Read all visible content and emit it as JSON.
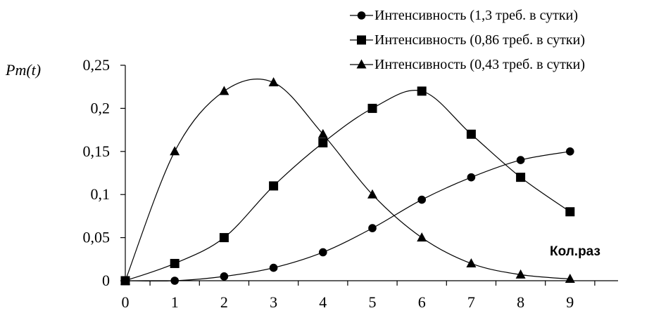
{
  "chart_data": {
    "type": "line",
    "title": "",
    "ylabel": "Pm(t)",
    "xlabel": "Кол.раз",
    "x": [
      0,
      1,
      2,
      3,
      4,
      5,
      6,
      7,
      8,
      9
    ],
    "xlim": [
      0,
      9
    ],
    "ylim": [
      0,
      0.25
    ],
    "x_ticks": [
      "0",
      "1",
      "2",
      "3",
      "4",
      "5",
      "6",
      "7",
      "8",
      "9"
    ],
    "y_ticks": [
      "0",
      "0,05",
      "0,1",
      "0,15",
      "0,2",
      "0,25"
    ],
    "y_tick_values": [
      0,
      0.05,
      0.1,
      0.15,
      0.2,
      0.25
    ],
    "grid": false,
    "legend_position": "top-right",
    "series": [
      {
        "name": "Интенсивность  (1,3 треб. в сутки)",
        "marker": "circle",
        "values": [
          0,
          0,
          0.005,
          0.015,
          0.033,
          0.061,
          0.094,
          0.12,
          0.14,
          0.15
        ]
      },
      {
        "name": "Интенсивность  (0,86 треб. в сутки)",
        "marker": "square",
        "values": [
          0,
          0.02,
          0.05,
          0.11,
          0.16,
          0.2,
          0.22,
          0.17,
          0.12,
          0.08
        ]
      },
      {
        "name": "Интенсивность  (0,43 треб. в сутки)",
        "marker": "triangle",
        "values": [
          0,
          0.15,
          0.22,
          0.23,
          0.17,
          0.1,
          0.05,
          0.02,
          0.007,
          0.002
        ]
      }
    ]
  }
}
